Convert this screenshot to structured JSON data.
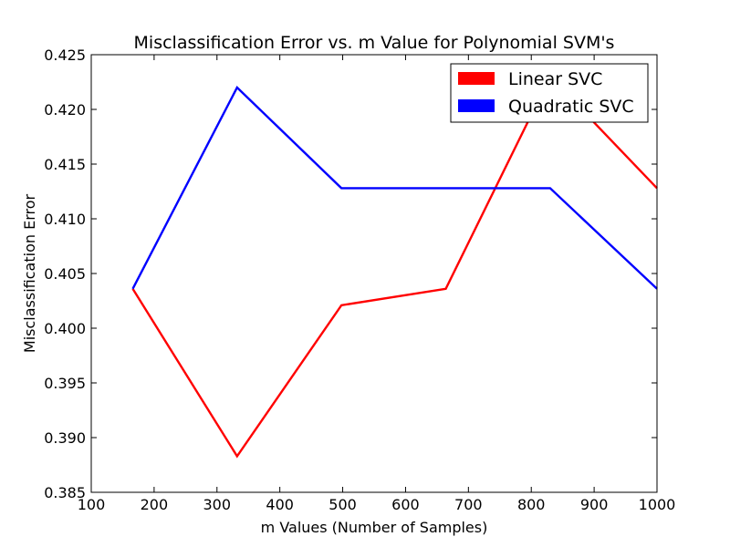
{
  "chart_data": {
    "type": "line",
    "title": "Misclassification Error vs. m Value for Polynomial SVM's",
    "xlabel": "m Values (Number of Samples)",
    "ylabel": "Misclassification Error",
    "xlim": [
      100,
      1000
    ],
    "ylim": [
      0.385,
      0.425
    ],
    "xticks": [
      100,
      200,
      300,
      400,
      500,
      600,
      700,
      800,
      900,
      1000
    ],
    "xtick_labels": [
      "100",
      "200",
      "300",
      "400",
      "500",
      "600",
      "700",
      "800",
      "900",
      "1000"
    ],
    "yticks": [
      0.385,
      0.39,
      0.395,
      0.4,
      0.405,
      0.41,
      0.415,
      0.42,
      0.425
    ],
    "ytick_labels": [
      "0.385",
      "0.390",
      "0.395",
      "0.400",
      "0.405",
      "0.410",
      "0.415",
      "0.420",
      "0.425"
    ],
    "grid": false,
    "legend_position": "top-right",
    "series": [
      {
        "name": "Linear SVC",
        "color": "#ff0000",
        "x": [
          166,
          332,
          498,
          664,
          830,
          1000
        ],
        "y": [
          0.4036,
          0.3883,
          0.4021,
          0.4036,
          0.423,
          0.4128
        ]
      },
      {
        "name": "Quadratic SVC",
        "color": "#0000ff",
        "x": [
          166,
          332,
          498,
          664,
          830,
          1000
        ],
        "y": [
          0.4036,
          0.422,
          0.4128,
          0.4128,
          0.4128,
          0.4036
        ]
      }
    ]
  }
}
